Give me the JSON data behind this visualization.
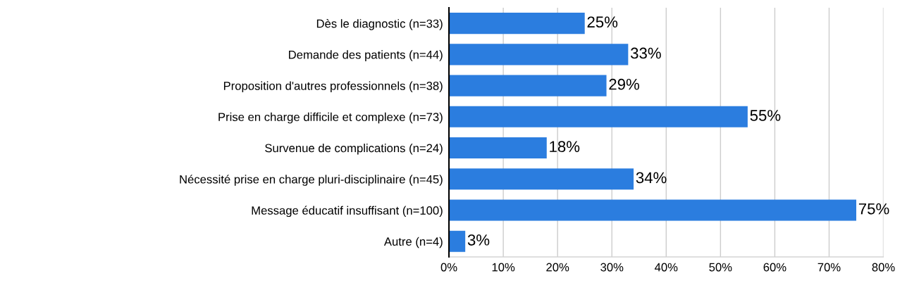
{
  "chart_data": {
    "type": "bar",
    "orientation": "horizontal",
    "categories": [
      "Dès le diagnostic (n=33)",
      "Demande des patients (n=44)",
      "Proposition d'autres professionnels (n=38)",
      "Prise en charge difficile et complexe (n=73)",
      "Survenue de complications (n=24)",
      "Nécessité prise en charge pluri-disciplinaire (n=45)",
      "Message éducatif insuffisant (n=100)",
      "Autre (n=4)"
    ],
    "values": [
      25,
      33,
      29,
      55,
      18,
      34,
      75,
      3
    ],
    "value_labels": [
      "25%",
      "33%",
      "29%",
      "55%",
      "18%",
      "34%",
      "75%",
      "3%"
    ],
    "color": "#2b7ddf",
    "xlim": [
      0,
      80
    ],
    "xticks": [
      {
        "value": 0,
        "label": "0%"
      },
      {
        "value": 10,
        "label": "10%"
      },
      {
        "value": 20,
        "label": "20%"
      },
      {
        "value": 30,
        "label": "30%"
      },
      {
        "value": 40,
        "label": "40%"
      },
      {
        "value": 50,
        "label": "50%"
      },
      {
        "value": 60,
        "label": "60%"
      },
      {
        "value": 70,
        "label": "70%"
      },
      {
        "value": 80,
        "label": "80%"
      }
    ],
    "grid": "x",
    "legend": false
  }
}
